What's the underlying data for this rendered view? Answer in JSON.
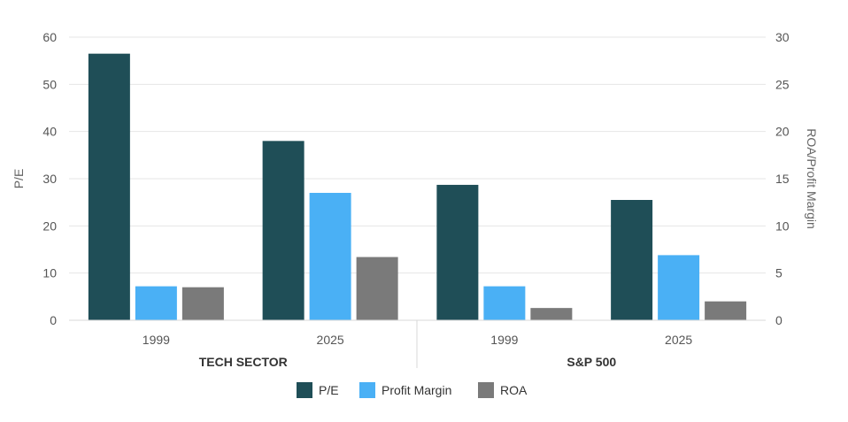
{
  "chart_data": {
    "type": "bar",
    "groups": [
      {
        "label": "TECH SECTOR",
        "categories": [
          "1999",
          "2025"
        ]
      },
      {
        "label": "S&P 500",
        "categories": [
          "1999",
          "2025"
        ]
      }
    ],
    "series": [
      {
        "name": "P/E",
        "axis": "left",
        "color": "#1f4e57",
        "values": [
          56.5,
          38,
          28.7,
          25.5
        ]
      },
      {
        "name": "Profit Margin",
        "axis": "right",
        "color": "#4ab0f5",
        "values": [
          3.6,
          13.5,
          3.6,
          6.9
        ]
      },
      {
        "name": "ROA",
        "axis": "right",
        "color": "#7a7a7a",
        "values": [
          3.5,
          6.7,
          1.3,
          2.0
        ]
      }
    ],
    "ylabel": "P/E",
    "y2label": "ROA/Profit Margin",
    "ylim": [
      0,
      60
    ],
    "y2lim": [
      0,
      30
    ],
    "yticks": [
      "0",
      "10",
      "20",
      "30",
      "40",
      "50",
      "60"
    ],
    "y2ticks": [
      "0",
      "5",
      "10",
      "15",
      "20",
      "25",
      "30"
    ],
    "grid": true,
    "legend_position": "bottom"
  }
}
